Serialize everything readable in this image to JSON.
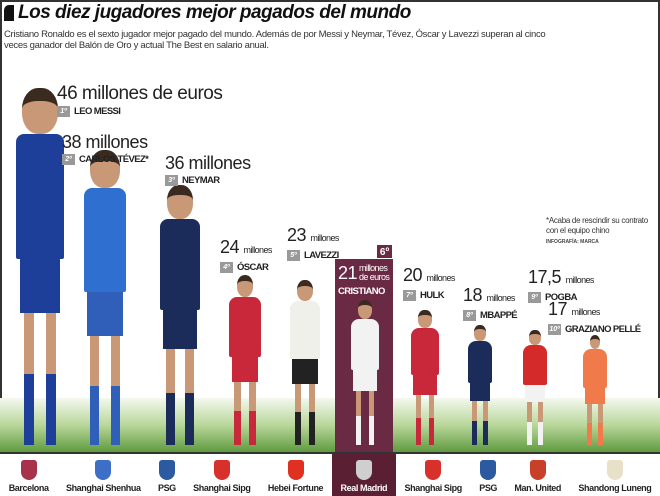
{
  "title": "Los diez jugadores mejor pagados del mundo",
  "intro": "Cristiano Ronaldo es el sexto jugador mejor pagado del mundo. Además de por Messi y Neymar, Tévez, Óscar y Lavezzi superan al cinco veces ganador del Balón de Oro y actual The Best en salario anual.",
  "note": "*Acaba de rescindir su contrato con el equipo chino",
  "credit": "INFOGRAFÍA: MARCA",
  "highlight_color": "#6b2a43",
  "players": [
    {
      "rank": "1º",
      "name": "LEO MESSI",
      "amount": "46",
      "unit": "millones de euros",
      "club": "Barcelona",
      "jersey": "#1d3f9a",
      "shorts": "#1d3f9a",
      "crest": "#a8324a"
    },
    {
      "rank": "2º",
      "name": "CARLOS TÉVEZ*",
      "amount": "38",
      "unit": "millones",
      "club": "Shanghai Shenhua",
      "jersey": "#2f6fd0",
      "shorts": "#2f5fb8",
      "crest": "#3d6fc8"
    },
    {
      "rank": "3º",
      "name": "NEYMAR",
      "amount": "36",
      "unit": "millones",
      "club": "PSG",
      "jersey": "#1b2c5a",
      "shorts": "#1b2c5a",
      "crest": "#2c5aa0"
    },
    {
      "rank": "4º",
      "name": "ÓSCAR",
      "amount": "24",
      "unit": "millones",
      "club": "Shanghai Sipg",
      "jersey": "#c8283a",
      "shorts": "#c8283a",
      "crest": "#d8302a"
    },
    {
      "rank": "5º",
      "name": "LAVEZZI",
      "amount": "23",
      "unit": "millones",
      "club": "Hebei Fortune",
      "jersey": "#f0f0ea",
      "shorts": "#222",
      "crest": "#e03020"
    },
    {
      "rank": "6º",
      "name": "CRISTIANO",
      "amount": "21",
      "unit": "millones de euros",
      "club": "Real Madrid",
      "jersey": "#f2f2f2",
      "shorts": "#f2f2f2",
      "crest": "#cfcfcf"
    },
    {
      "rank": "7º",
      "name": "HULK",
      "amount": "20",
      "unit": "millones",
      "club": "Shanghai Sipg",
      "jersey": "#c8283a",
      "shorts": "#c8283a",
      "crest": "#d8302a"
    },
    {
      "rank": "8º",
      "name": "MBAPPÉ",
      "amount": "18",
      "unit": "millones",
      "club": "PSG",
      "jersey": "#1b2c5a",
      "shorts": "#1b2c5a",
      "crest": "#2c5aa0"
    },
    {
      "rank": "9º",
      "name": "POGBA",
      "amount": "17,5",
      "unit": "millones",
      "club": "Man. United",
      "jersey": "#d42a2a",
      "shorts": "#f2f2f2",
      "crest": "#c8402a"
    },
    {
      "rank": "10º",
      "name": "GRAZIANO PELLÉ",
      "amount": "17",
      "unit": "millones",
      "club": "Shandong Luneng",
      "jersey": "#f07a4a",
      "shorts": "#f07a4a",
      "crest": "#e8e0c8"
    }
  ]
}
